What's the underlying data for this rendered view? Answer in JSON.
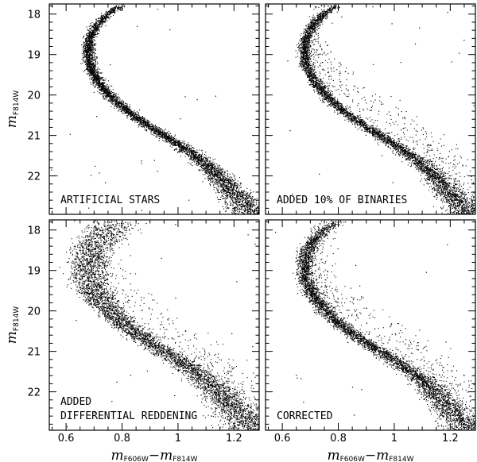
{
  "chart_data": {
    "type": "scatter",
    "layout": "2x2 grid, shared axes",
    "x_axis": {
      "label_main": "m",
      "label_sub1": "F606W",
      "label_sep": "−m",
      "label_sub2": "F814W",
      "range": [
        0.54,
        1.29
      ],
      "ticks": [
        0.6,
        0.8,
        1,
        1.2
      ],
      "tick_labels": [
        "0.6",
        "0.8",
        "1",
        "1.2"
      ],
      "minor_step": 0.05
    },
    "y_axis": {
      "label_main": "m",
      "label_sub": "F814W",
      "range": [
        17.75,
        22.95
      ],
      "inverted": true,
      "ticks": [
        18,
        19,
        20,
        21,
        22
      ],
      "tick_labels": [
        "18",
        "19",
        "20",
        "21",
        "22"
      ],
      "minor_step": 0.2
    },
    "sequence_ridge": [
      [
        17.8,
        0.79
      ],
      [
        18.0,
        0.745
      ],
      [
        18.3,
        0.705
      ],
      [
        18.6,
        0.683
      ],
      [
        18.9,
        0.678
      ],
      [
        19.2,
        0.683
      ],
      [
        19.5,
        0.7
      ],
      [
        19.8,
        0.73
      ],
      [
        20.1,
        0.77
      ],
      [
        20.4,
        0.82
      ],
      [
        20.7,
        0.88
      ],
      [
        21.0,
        0.95
      ],
      [
        21.3,
        1.02
      ],
      [
        21.6,
        1.08
      ],
      [
        21.9,
        1.13
      ],
      [
        22.2,
        1.17
      ],
      [
        22.5,
        1.21
      ],
      [
        22.8,
        1.25
      ],
      [
        22.95,
        1.27
      ]
    ],
    "panels": [
      {
        "id": "artificial-stars",
        "label_lines": [
          "ARTIFICIAL STARS"
        ],
        "label_position": "bottom-left",
        "color_spread": 0.01,
        "binary_fraction": 0.0,
        "differential_reddening": false
      },
      {
        "id": "added-binaries",
        "label_lines": [
          "ADDED 10% OF BINARIES"
        ],
        "label_position": "bottom-left",
        "color_spread": 0.01,
        "binary_fraction": 0.1,
        "differential_reddening": false
      },
      {
        "id": "added-differential-reddening",
        "label_lines": [
          "ADDED",
          "DIFFERENTIAL REDDENING"
        ],
        "label_position": "bottom-left",
        "color_spread": 0.01,
        "binary_fraction": 0.1,
        "differential_reddening": true
      },
      {
        "id": "corrected",
        "label_lines": [
          "CORRECTED"
        ],
        "label_position": "bottom-left",
        "color_spread": 0.014,
        "binary_fraction": 0.1,
        "differential_reddening": false
      }
    ]
  }
}
